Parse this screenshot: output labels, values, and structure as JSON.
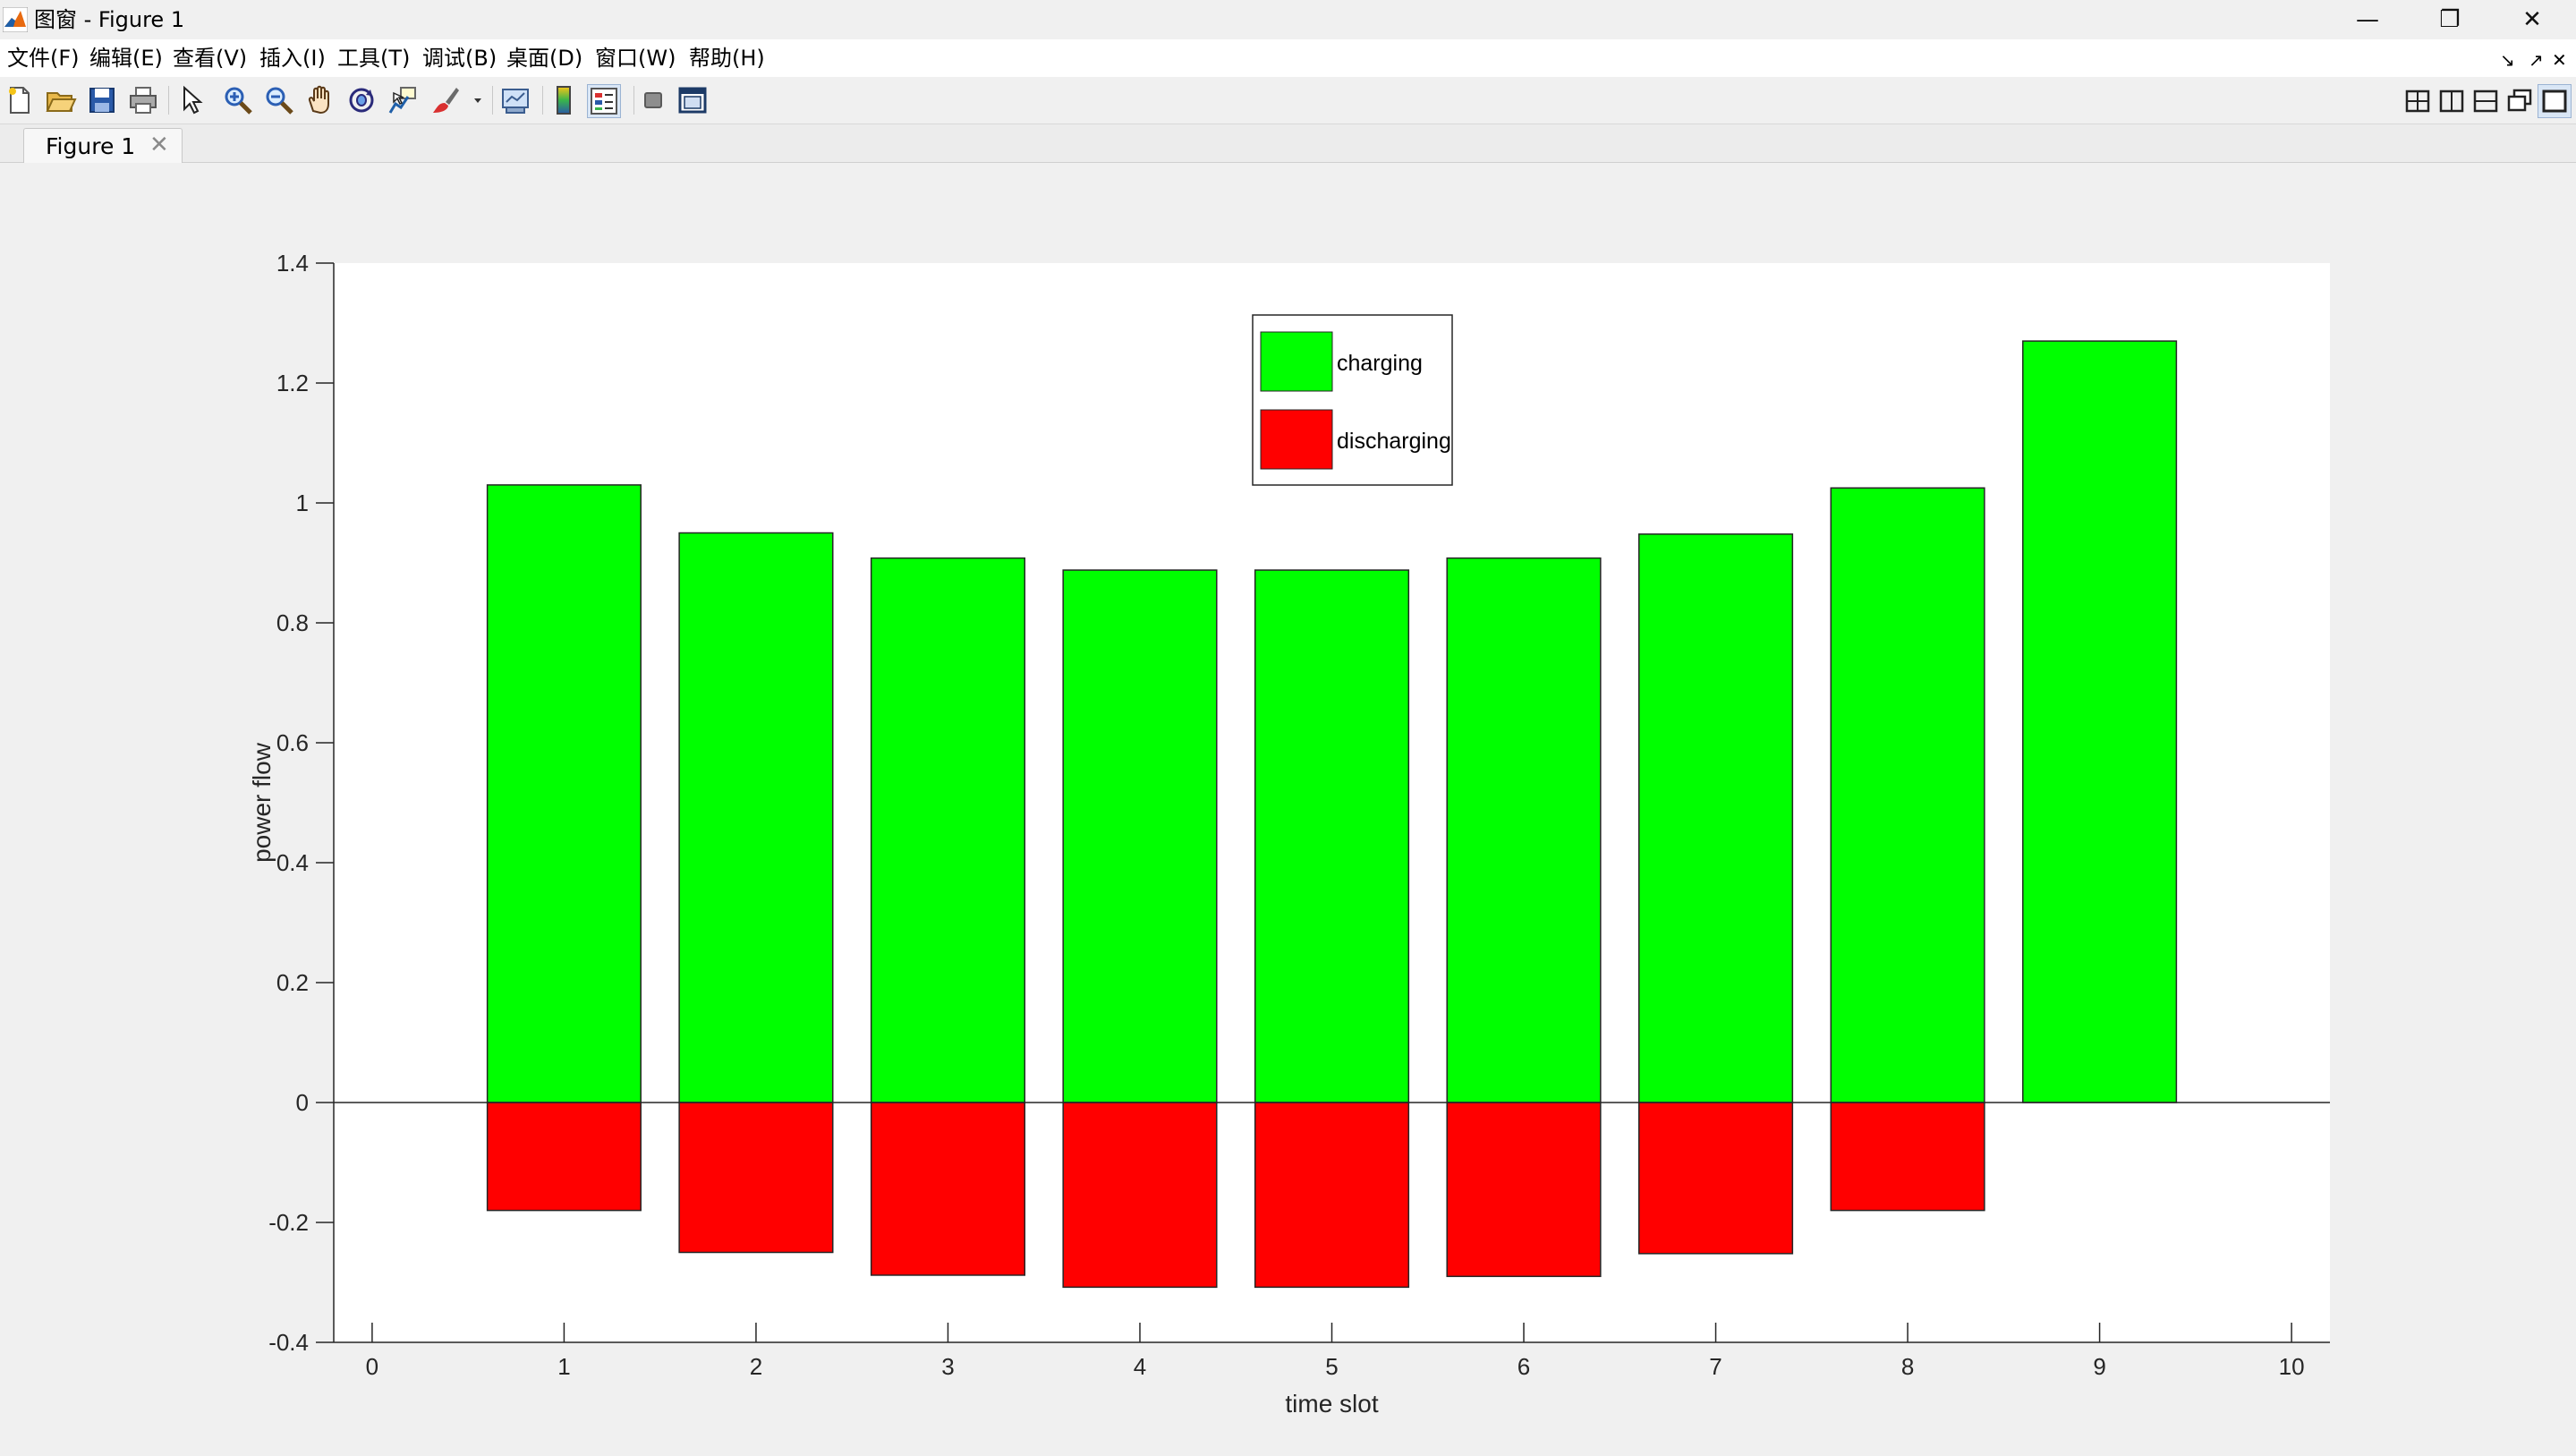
{
  "window": {
    "title": "图窗 - Figure 1",
    "controls": {
      "minimize": "—",
      "maximize": "❐",
      "close": "✕"
    }
  },
  "menubar": {
    "items": [
      {
        "label": "文件(F)"
      },
      {
        "label": "编辑(E)"
      },
      {
        "label": "查看(V)"
      },
      {
        "label": "插入(I)"
      },
      {
        "label": "工具(T)"
      },
      {
        "label": "调试(B)"
      },
      {
        "label": "桌面(D)"
      },
      {
        "label": "窗口(W)"
      },
      {
        "label": "帮助(H)"
      }
    ],
    "right_controls": {
      "undock": "↘",
      "dock": "↗",
      "close": "✕"
    }
  },
  "toolbar": {
    "left_icons": [
      "new-figure-icon",
      "open-file-icon",
      "save-icon",
      "print-icon",
      "pointer-icon",
      "zoom-in-icon",
      "zoom-out-icon",
      "pan-hand-icon",
      "rotate-3d-icon",
      "data-cursor-icon",
      "brush-icon",
      "link-icon",
      "colorbar-icon",
      "legend-icon",
      "hide-plot-tools-icon",
      "show-plot-tools-icon"
    ],
    "right_icons": [
      "tile-grid-icon",
      "tile-columns-icon",
      "tile-rows-icon",
      "float-window-icon",
      "maximize-figure-icon"
    ]
  },
  "tabs": [
    {
      "label": "Figure 1",
      "close": "✕"
    }
  ],
  "colors": {
    "charging": "#00ff00",
    "discharging": "#ff0000",
    "plot_bg": "#ffffff",
    "figure_bg": "#f0f0f0"
  },
  "chart_data": {
    "type": "bar",
    "stacked": true,
    "x": [
      1,
      2,
      3,
      4,
      5,
      6,
      7,
      8,
      9
    ],
    "series": [
      {
        "name": "charging",
        "color": "#00ff00",
        "values": [
          1.03,
          0.95,
          0.908,
          0.888,
          0.888,
          0.908,
          0.948,
          1.025,
          1.27
        ]
      },
      {
        "name": "discharging",
        "color": "#ff0000",
        "values": [
          -0.18,
          -0.25,
          -0.288,
          -0.308,
          -0.308,
          -0.29,
          -0.252,
          -0.18,
          0
        ]
      }
    ],
    "xlabel": "time slot",
    "ylabel": "power flow",
    "xlim": [
      -0.2,
      10.2
    ],
    "ylim": [
      -0.4,
      1.4
    ],
    "xticks": [
      0,
      1,
      2,
      3,
      4,
      5,
      6,
      7,
      8,
      9,
      10
    ],
    "yticks": [
      -0.4,
      -0.2,
      0,
      0.2,
      0.4,
      0.6,
      0.8,
      1,
      1.2,
      1.4
    ],
    "ytick_labels": [
      "-0.4",
      "-0.2",
      "0",
      "0.2",
      "0.4",
      "0.6",
      "0.8",
      "1",
      "1.2",
      "1.4"
    ],
    "bar_width": 0.8,
    "grid": false,
    "legend": {
      "entries": [
        "charging",
        "discharging"
      ],
      "placement": "top-center"
    }
  }
}
